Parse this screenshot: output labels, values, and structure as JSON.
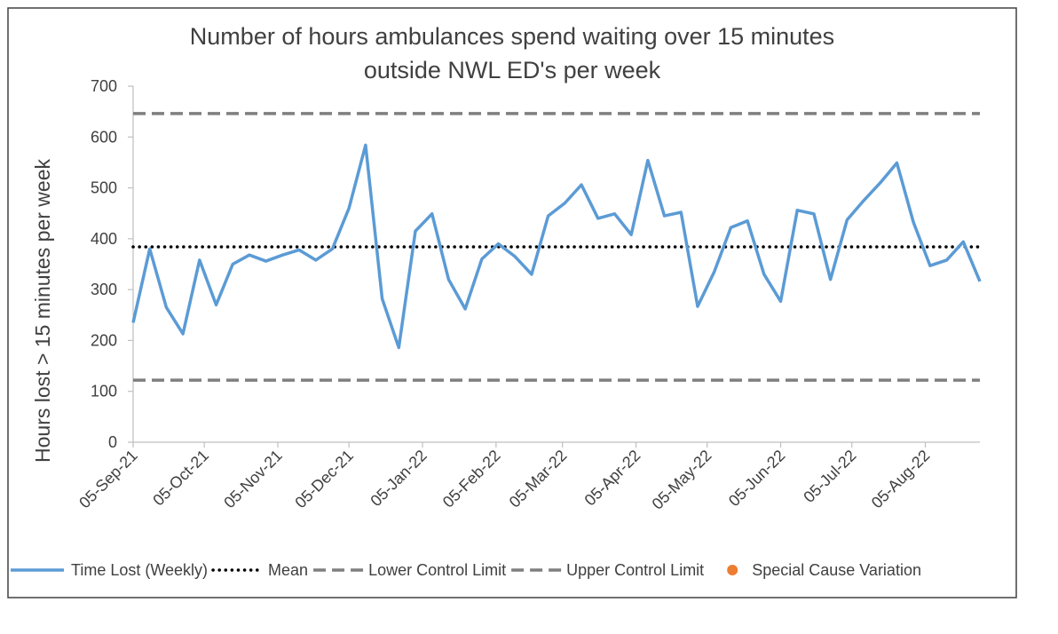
{
  "chart_data": {
    "type": "line",
    "title": [
      "Number of hours ambulances spend waiting over 15 minutes",
      "outside NWL ED's per week"
    ],
    "y_label": "Hours lost > 15 minutes per week",
    "x": [
      "2021-09-05",
      "2021-09-12",
      "2021-09-19",
      "2021-09-26",
      "2021-10-03",
      "2021-10-10",
      "2021-10-17",
      "2021-10-24",
      "2021-10-31",
      "2021-11-07",
      "2021-11-14",
      "2021-11-21",
      "2021-11-28",
      "2021-12-05",
      "2021-12-12",
      "2021-12-19",
      "2021-12-26",
      "2022-01-02",
      "2022-01-09",
      "2022-01-16",
      "2022-01-23",
      "2022-01-30",
      "2022-02-06",
      "2022-02-13",
      "2022-02-20",
      "2022-02-27",
      "2022-03-06",
      "2022-03-13",
      "2022-03-20",
      "2022-03-27",
      "2022-04-03",
      "2022-04-10",
      "2022-04-17",
      "2022-04-24",
      "2022-05-01",
      "2022-05-08",
      "2022-05-15",
      "2022-05-22",
      "2022-05-29",
      "2022-06-05",
      "2022-06-12",
      "2022-06-19",
      "2022-06-26",
      "2022-07-03",
      "2022-07-10",
      "2022-07-17",
      "2022-07-24",
      "2022-07-31",
      "2022-08-07",
      "2022-08-14",
      "2022-08-21",
      "2022-08-28"
    ],
    "series": [
      {
        "name": "Time Lost (Weekly)",
        "color": "#5b9bd5",
        "values": [
          235,
          380,
          265,
          213,
          358,
          270,
          350,
          368,
          356,
          368,
          378,
          358,
          380,
          460,
          584,
          282,
          186,
          415,
          449,
          320,
          262,
          360,
          390,
          365,
          330,
          445,
          470,
          506,
          440,
          449,
          408,
          554,
          445,
          452,
          267,
          335,
          422,
          435,
          330,
          277,
          456,
          449,
          320,
          437,
          475,
          510,
          549,
          432,
          347,
          358,
          394,
          316
        ]
      }
    ],
    "reference_lines": [
      {
        "name": "Mean",
        "value": 384,
        "color": "#000000",
        "style": "dotted"
      },
      {
        "name": "Lower Control Limit",
        "value": 122,
        "color": "#7f7f7f",
        "style": "dashed"
      },
      {
        "name": "Upper Control Limit",
        "value": 646,
        "color": "#7f7f7f",
        "style": "dashed"
      }
    ],
    "special_cause": {
      "name": "Special Cause Variation",
      "color": "#ed7d31",
      "points": []
    },
    "xlim": [
      "2021-09-05",
      "2022-08-28"
    ],
    "xticks": [
      {
        "value": "2021-09-05",
        "label": "05-Sep-21"
      },
      {
        "value": "2021-10-05",
        "label": "05-Oct-21"
      },
      {
        "value": "2021-11-05",
        "label": "05-Nov-21"
      },
      {
        "value": "2021-12-05",
        "label": "05-Dec-21"
      },
      {
        "value": "2022-01-05",
        "label": "05-Jan-22"
      },
      {
        "value": "2022-02-05",
        "label": "05-Feb-22"
      },
      {
        "value": "2022-03-05",
        "label": "05-Mar-22"
      },
      {
        "value": "2022-04-05",
        "label": "05-Apr-22"
      },
      {
        "value": "2022-05-05",
        "label": "05-May-22"
      },
      {
        "value": "2022-06-05",
        "label": "05-Jun-22"
      },
      {
        "value": "2022-07-05",
        "label": "05-Jul-22"
      },
      {
        "value": "2022-08-05",
        "label": "05-Aug-22"
      }
    ],
    "ylim": [
      0,
      700
    ],
    "yticks": [
      0,
      100,
      200,
      300,
      400,
      500,
      600,
      700
    ],
    "grid": false,
    "legend": "bottom"
  }
}
